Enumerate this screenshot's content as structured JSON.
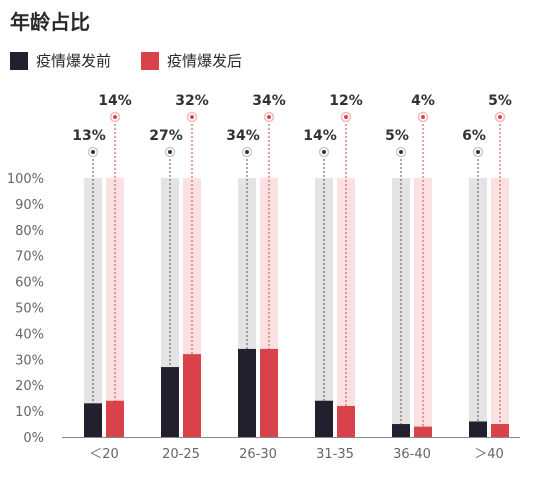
{
  "title": "年龄占比",
  "colors": {
    "before": "#231f2e",
    "after": "#d9424a",
    "before_track": "#e4e4e4",
    "after_track": "#fbe1e2"
  },
  "chart_data": {
    "type": "bar",
    "title": "年龄占比",
    "categories": [
      "＜20",
      "20-25",
      "26-30",
      "31-35",
      "36-40",
      "＞40"
    ],
    "series": [
      {
        "name": "疫情爆发前",
        "values": [
          13,
          27,
          34,
          14,
          5,
          6
        ]
      },
      {
        "name": "疫情爆发后",
        "values": [
          14,
          32,
          34,
          12,
          4,
          5
        ]
      }
    ],
    "data_labels": {
      "before": [
        "13%",
        "27%",
        "34%",
        "14%",
        "5%",
        "6%"
      ],
      "after": [
        "14%",
        "32%",
        "34%",
        "12%",
        "4%",
        "5%"
      ]
    },
    "yticks": [
      "0%",
      "10%",
      "20%",
      "30%",
      "40%",
      "50%",
      "60%",
      "70%",
      "80%",
      "90%",
      "100%"
    ],
    "ylim": [
      0,
      100
    ],
    "legend_position": "top-left",
    "grid": false
  }
}
